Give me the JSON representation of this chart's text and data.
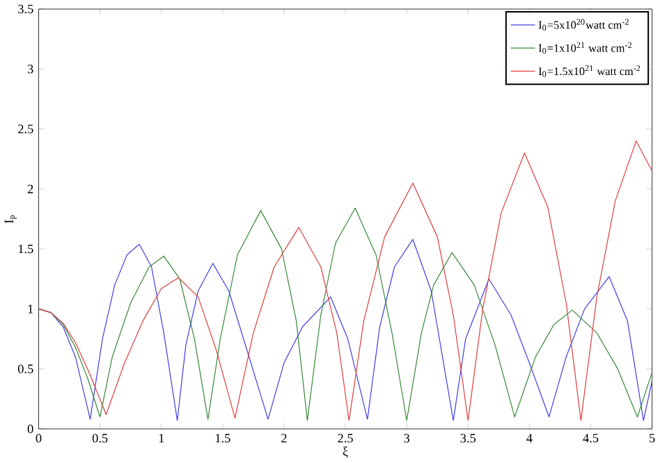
{
  "chart_data": {
    "type": "line",
    "xlabel": "ξ",
    "ylabel": "I$_{p}$",
    "xlim": [
      0,
      5
    ],
    "ylim": [
      0,
      3.5
    ],
    "xticks": [
      0,
      0.5,
      1,
      1.5,
      2,
      2.5,
      3,
      3.5,
      4,
      4.5,
      5
    ],
    "yticks": [
      0,
      0.5,
      1,
      1.5,
      2,
      2.5,
      3,
      3.5
    ],
    "grid": false,
    "legend": "top right",
    "marker": "none",
    "line_style": "solid",
    "series": [
      {
        "name": "I$_{0}$=5x10$^{20}$watt cm$^{-2}$",
        "color": "#4040e0",
        "x": [
          0,
          0.1,
          0.2,
          0.3,
          0.42,
          0.52,
          0.62,
          0.72,
          0.82,
          0.92,
          1.02,
          1.13,
          1.2,
          1.3,
          1.42,
          1.55,
          1.7,
          1.87,
          2.0,
          2.15,
          2.38,
          2.52,
          2.68,
          2.78,
          2.9,
          3.05,
          3.2,
          3.38,
          3.48,
          3.67,
          3.85,
          4.0,
          4.16,
          4.3,
          4.45,
          4.65,
          4.8,
          4.93,
          5
        ],
        "values": [
          1,
          0.97,
          0.85,
          0.6,
          0.08,
          0.75,
          1.2,
          1.45,
          1.54,
          1.35,
          0.8,
          0.07,
          0.7,
          1.15,
          1.38,
          1.15,
          0.65,
          0.08,
          0.55,
          0.85,
          1.1,
          0.75,
          0.08,
          0.85,
          1.35,
          1.58,
          1.15,
          0.07,
          0.75,
          1.25,
          0.95,
          0.55,
          0.1,
          0.6,
          1.0,
          1.27,
          0.9,
          0.07,
          0.4
        ]
      },
      {
        "name": "I$_{0}$=1x10$^{21}$ watt cm$^{-2}$",
        "color": "#3a8a3a",
        "x": [
          0,
          0.1,
          0.2,
          0.3,
          0.4,
          0.5,
          0.6,
          0.75,
          0.9,
          1.02,
          1.15,
          1.27,
          1.38,
          1.48,
          1.62,
          1.81,
          1.98,
          2.1,
          2.19,
          2.3,
          2.42,
          2.58,
          2.75,
          2.88,
          3.0,
          3.12,
          3.22,
          3.37,
          3.55,
          3.72,
          3.88,
          4.05,
          4.2,
          4.35,
          4.55,
          4.72,
          4.88,
          5
        ],
        "values": [
          1,
          0.97,
          0.87,
          0.68,
          0.42,
          0.1,
          0.6,
          1.05,
          1.35,
          1.44,
          1.25,
          0.75,
          0.08,
          0.75,
          1.45,
          1.82,
          1.5,
          0.9,
          0.07,
          0.95,
          1.55,
          1.84,
          1.45,
          0.8,
          0.07,
          0.8,
          1.2,
          1.47,
          1.2,
          0.7,
          0.1,
          0.6,
          0.87,
          0.99,
          0.8,
          0.5,
          0.1,
          0.47
        ]
      },
      {
        "name": "I$_{0}$=1.5x10$^{21}$ watt cm$^{-2}$",
        "color": "#e04040",
        "x": [
          0,
          0.1,
          0.2,
          0.3,
          0.42,
          0.55,
          0.7,
          0.85,
          1.0,
          1.14,
          1.3,
          1.45,
          1.6,
          1.75,
          1.92,
          2.12,
          2.3,
          2.43,
          2.53,
          2.65,
          2.82,
          3.05,
          3.25,
          3.38,
          3.5,
          3.62,
          3.77,
          3.96,
          4.15,
          4.3,
          4.42,
          4.55,
          4.7,
          4.87,
          5
        ],
        "values": [
          1,
          0.97,
          0.88,
          0.72,
          0.45,
          0.12,
          0.55,
          0.9,
          1.17,
          1.26,
          1.1,
          0.65,
          0.09,
          0.8,
          1.35,
          1.68,
          1.35,
          0.8,
          0.07,
          0.9,
          1.6,
          2.05,
          1.6,
          0.95,
          0.07,
          1.0,
          1.8,
          2.3,
          1.85,
          1.05,
          0.07,
          1.1,
          1.9,
          2.4,
          2.15
        ]
      }
    ]
  }
}
